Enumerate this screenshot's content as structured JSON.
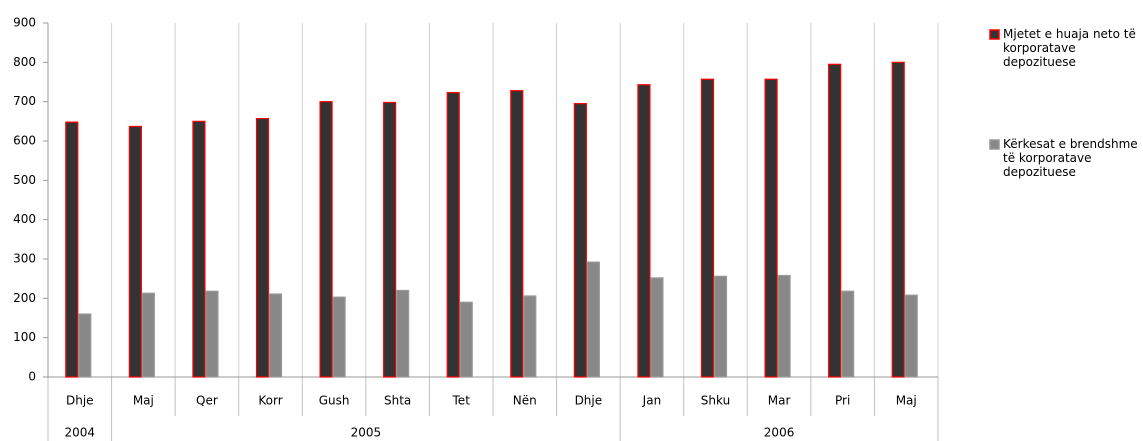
{
  "chart_data": {
    "type": "bar",
    "category_groups": [
      {
        "label": "2004",
        "categories": [
          "Dhje"
        ]
      },
      {
        "label": "2005",
        "categories": [
          "Maj",
          "Qer",
          "Korr",
          "Gush",
          "Shta",
          "Tet",
          "Nën",
          "Dhje"
        ]
      },
      {
        "label": "2006",
        "categories": [
          "Jan",
          "Shku",
          "Mar",
          "Pri",
          "Maj"
        ]
      }
    ],
    "series": [
      {
        "name": "Mjetet e huaja neto të korporatave depozituese",
        "color": "#333333",
        "edge": "#ff0000",
        "values": [
          648,
          637,
          650,
          657,
          700,
          698,
          723,
          728,
          695,
          743,
          757,
          757,
          795,
          800
        ]
      },
      {
        "name": "Kërkesat e brendshme të korporatave depozituese",
        "color": "#888888",
        "edge": "#999999",
        "values": [
          160,
          213,
          218,
          211,
          203,
          220,
          190,
          206,
          292,
          252,
          256,
          258,
          218,
          208
        ]
      }
    ],
    "ylim": [
      0,
      900
    ],
    "yticks": [
      0,
      100,
      200,
      300,
      400,
      500,
      600,
      700,
      800,
      900
    ],
    "grid": true,
    "legend": "right"
  }
}
